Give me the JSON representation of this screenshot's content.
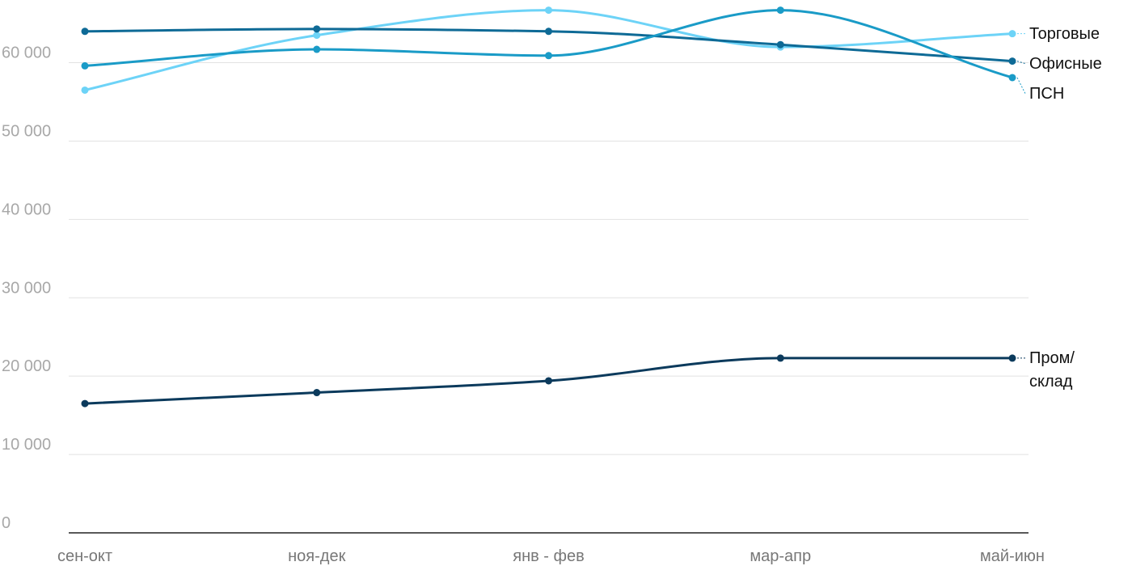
{
  "chart_data": {
    "type": "line",
    "categories": [
      "сен-окт",
      "ноя-дек",
      "янв - фев",
      "мар-апр",
      "май-июн"
    ],
    "series": [
      {
        "name": "Торговые",
        "color": "#6dd3f7",
        "values": [
          56500,
          63500,
          66700,
          62000,
          63700
        ]
      },
      {
        "name": "Офисные",
        "color": "#0e6a96",
        "values": [
          64000,
          64300,
          64000,
          62300,
          60200
        ]
      },
      {
        "name": "ПСН",
        "color": "#1a9bc7",
        "values": [
          59600,
          61700,
          60900,
          66700,
          58100
        ]
      },
      {
        "name": "Пром/\nсклад",
        "color": "#0b3a5c",
        "values": [
          16500,
          17900,
          19400,
          22300,
          22300
        ]
      }
    ],
    "ylim": [
      0,
      68000
    ],
    "yticks": [
      0,
      {
        "value": 10000,
        "label": "10 000"
      },
      {
        "value": 20000,
        "label": "20 000"
      },
      {
        "value": 30000,
        "label": "30 000"
      },
      {
        "value": 40000,
        "label": "40 000"
      },
      {
        "value": 50000,
        "label": "50 000"
      },
      {
        "value": 60000,
        "label": "60 000"
      }
    ],
    "grid": true
  }
}
